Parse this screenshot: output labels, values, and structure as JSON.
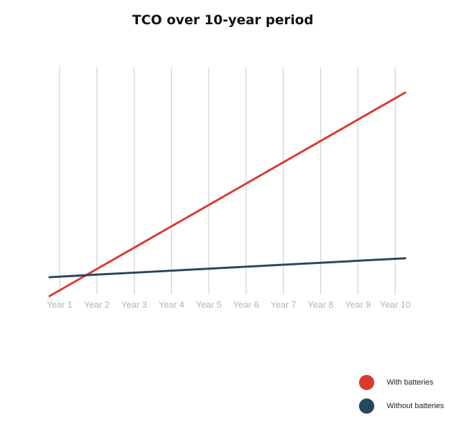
{
  "chart_data": {
    "type": "line",
    "title": "TCO over 10-year period",
    "xlabel": "",
    "ylabel": "",
    "categories": [
      "Year 1",
      "Year 2",
      "Year 3",
      "Year 4",
      "Year 5",
      "Year 6",
      "Year 7",
      "Year 8",
      "Year 9",
      "Year 10"
    ],
    "series": [
      {
        "name": "With batteries",
        "color": "#d93a2f",
        "values": [
          10,
          38,
          66,
          94,
          122,
          150,
          178,
          206,
          234,
          262
        ]
      },
      {
        "name": "Without batteries",
        "color": "#27475e",
        "values": [
          28,
          30.6,
          33.2,
          35.8,
          38.4,
          41,
          43.6,
          46.2,
          48.8,
          51.4
        ]
      }
    ],
    "ylim": [
      0,
      300
    ],
    "grid": "vertical",
    "legend_position": "bottom-right",
    "y_axis_labels": "none"
  }
}
